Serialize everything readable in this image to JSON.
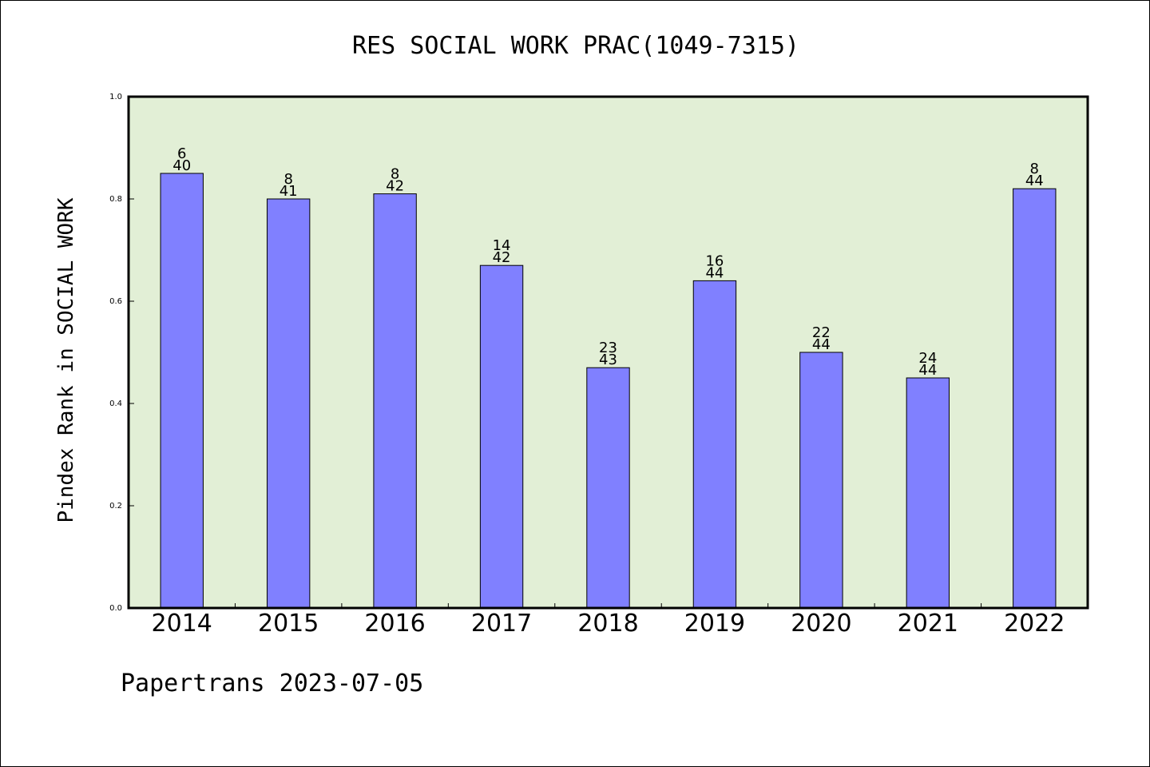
{
  "chart_data": {
    "type": "bar",
    "title": "RES SOCIAL WORK PRAC(1049-7315)",
    "ylabel": "Pindex Rank in SOCIAL WORK",
    "xlabel": "",
    "ylim": [
      0,
      1.0
    ],
    "yticks": [
      "0.0",
      "0.2",
      "0.4",
      "0.6",
      "0.8",
      "1.0"
    ],
    "categories": [
      "2014",
      "2015",
      "2016",
      "2017",
      "2018",
      "2019",
      "2020",
      "2021",
      "2022"
    ],
    "values": [
      0.85,
      0.8,
      0.81,
      0.67,
      0.47,
      0.64,
      0.5,
      0.45,
      0.82
    ],
    "rank_labels": [
      "6",
      "8",
      "8",
      "14",
      "23",
      "16",
      "22",
      "24",
      "8"
    ],
    "total_labels": [
      "40",
      "41",
      "42",
      "42",
      "43",
      "44",
      "44",
      "44",
      "44"
    ],
    "grid": false,
    "colors": {
      "plot_background": "#e2efd6",
      "bar_fill": "#8080ff",
      "bar_stroke": "#000000"
    }
  },
  "footer": {
    "text": "Papertrans 2023-07-05"
  }
}
